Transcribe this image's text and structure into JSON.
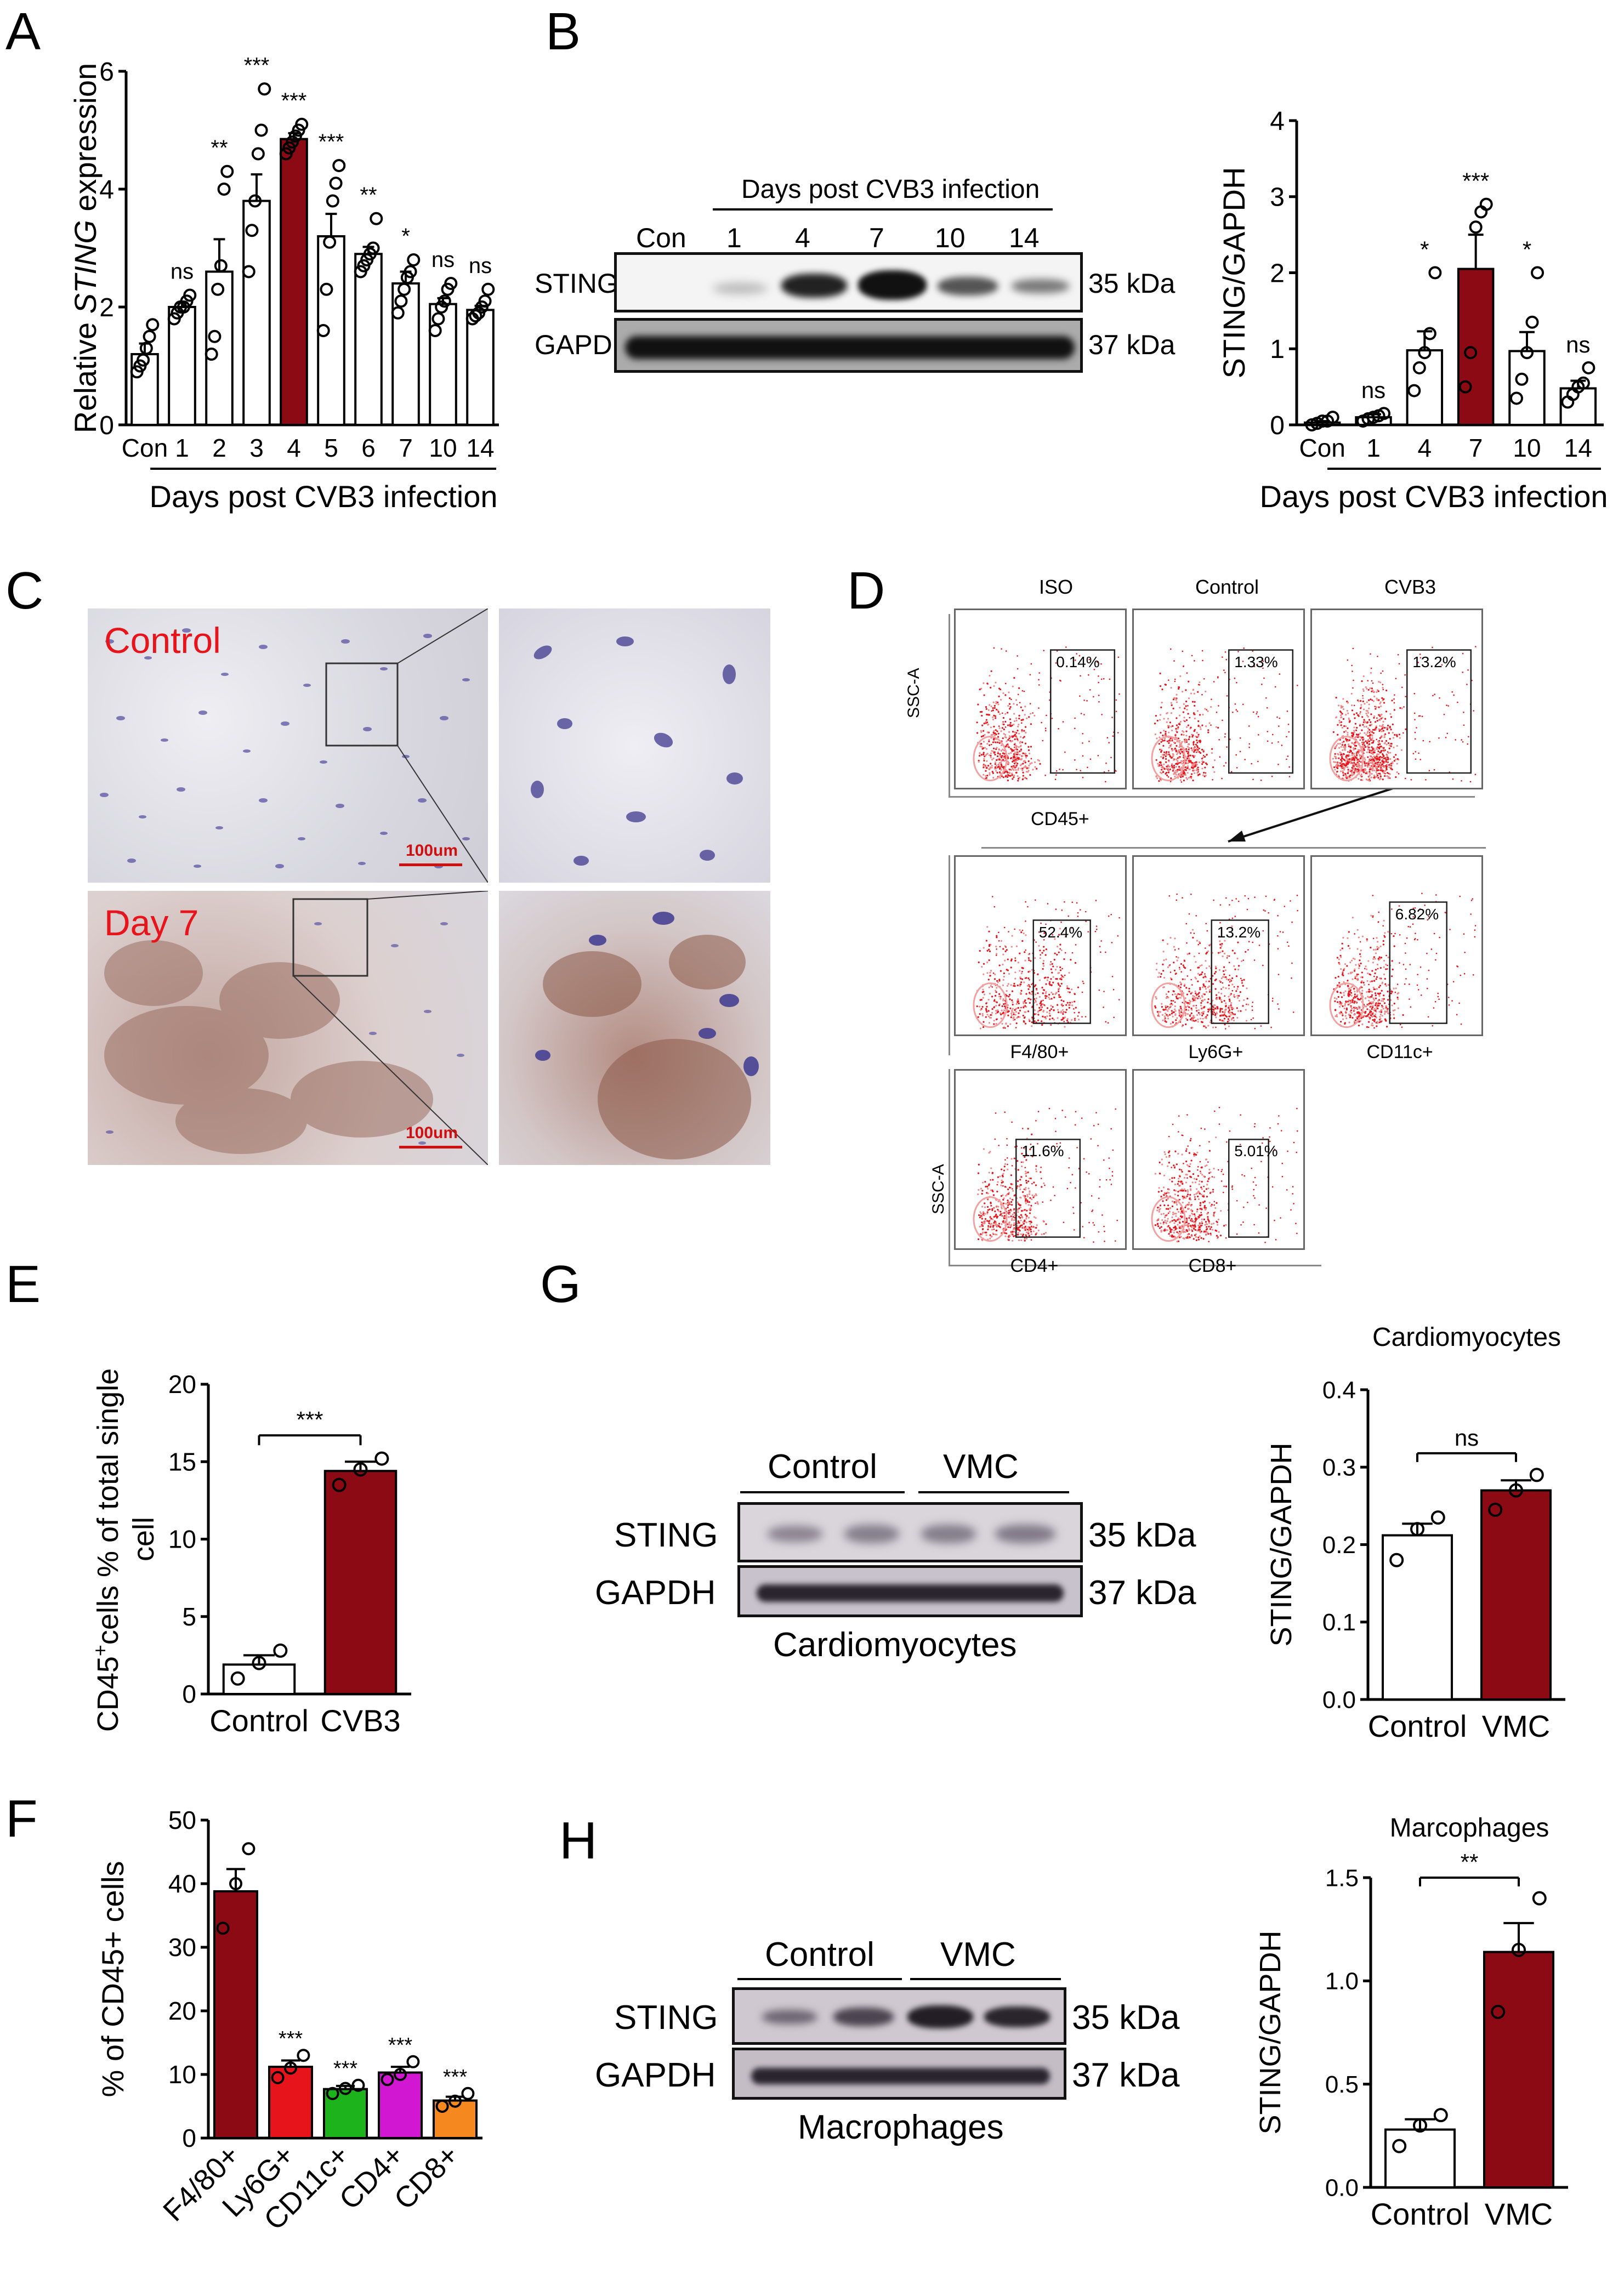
{
  "panels": {
    "A": "A",
    "B": "B",
    "C": "C",
    "D": "D",
    "E": "E",
    "F": "F",
    "G": "G",
    "H": "H"
  },
  "colors": {
    "dark_red": "#8b0a14",
    "red": "#e8141b",
    "green": "#1db31d",
    "magenta": "#d217d2",
    "orange": "#f5891f",
    "white_bar": "#ffffff"
  },
  "panel_A": {
    "ylabel_pre": "Relative ",
    "ylabel_italic": "STING",
    "ylabel_post": " expression",
    "xlabel": "Days post CVB3 infection"
  },
  "panel_B": {
    "blot_header": "Days post CVB3 infection",
    "lanes": [
      "Con",
      "1",
      "4",
      "7",
      "10",
      "14"
    ],
    "rows": [
      "STING",
      "GAPDH"
    ],
    "sizes": [
      "35 kDa",
      "37 kDa"
    ]
  },
  "panel_C": {
    "top_label": "Control",
    "bottom_label": "Day 7",
    "scale_top": "100um",
    "scale_bottom": "100um"
  },
  "panel_D": {
    "titles": [
      "ISO",
      "Control",
      "CVB3"
    ],
    "row1_pcts": [
      "0.14%",
      "1.33%",
      "13.2%"
    ],
    "row1_xlabel": "CD45+",
    "row2_pcts": [
      "52.4%",
      "13.2%",
      "6.82%"
    ],
    "row2_xlabels": [
      "F4/80+",
      "Ly6G+",
      "CD11c+"
    ],
    "row3_pcts": [
      "11.6%",
      "5.01%"
    ],
    "row3_xlabels": [
      "CD4+",
      "CD8+"
    ],
    "ylabel": "SSC-A"
  },
  "panel_G": {
    "group_labels": [
      "Control",
      "VMC"
    ],
    "rows": [
      "STING",
      "GAPDH"
    ],
    "sizes": [
      "35 kDa",
      "37 kDa"
    ],
    "caption": "Cardiomyocytes"
  },
  "panel_H": {
    "group_labels": [
      "Control",
      "VMC"
    ],
    "rows": [
      "STING",
      "GAPDH"
    ],
    "sizes": [
      "35 kDa",
      "37 kDa"
    ],
    "caption": "Macrophages"
  },
  "chart_data": [
    {
      "id": "A",
      "type": "bar",
      "categories": [
        "Con",
        "1",
        "2",
        "3",
        "4",
        "5",
        "6",
        "7",
        "10",
        "14"
      ],
      "values": [
        1.2,
        2.0,
        2.6,
        3.8,
        4.85,
        3.2,
        2.9,
        2.4,
        2.05,
        1.95
      ],
      "errors": [
        0.18,
        0.07,
        0.55,
        0.45,
        0.1,
        0.38,
        0.12,
        0.2,
        0.1,
        0.07
      ],
      "points": [
        [
          0.9,
          1.0,
          1.1,
          1.3,
          1.5,
          1.7
        ],
        [
          1.8,
          1.9,
          2.0,
          2.0,
          2.1,
          2.2
        ],
        [
          1.2,
          1.5,
          2.3,
          2.7,
          4.0,
          4.3
        ],
        [
          2.6,
          3.3,
          3.8,
          4.6,
          5.0,
          5.7
        ],
        [
          4.6,
          4.7,
          4.8,
          4.9,
          5.0,
          5.1
        ],
        [
          1.6,
          2.3,
          3.1,
          3.8,
          4.1,
          4.4
        ],
        [
          2.6,
          2.7,
          2.8,
          2.9,
          3.0,
          3.5
        ],
        [
          1.9,
          2.1,
          2.3,
          2.5,
          2.6,
          2.8
        ],
        [
          1.6,
          1.8,
          2.0,
          2.1,
          2.3,
          2.4
        ],
        [
          1.8,
          1.85,
          1.9,
          2.0,
          2.1,
          2.3
        ]
      ],
      "significance": [
        "",
        "ns",
        "**",
        "***",
        "***",
        "***",
        "**",
        "*",
        "ns",
        "ns"
      ],
      "highlight_index": 4,
      "ylim": [
        0,
        6
      ],
      "yticks": [
        "0",
        "2",
        "4",
        "6"
      ]
    },
    {
      "id": "B",
      "type": "bar",
      "categories": [
        "Con",
        "1",
        "4",
        "7",
        "10",
        "14"
      ],
      "values": [
        0.03,
        0.1,
        0.98,
        2.05,
        0.97,
        0.48
      ],
      "errors": [
        0.02,
        0.04,
        0.25,
        0.45,
        0.25,
        0.1
      ],
      "points": [
        [
          0.0,
          0.02,
          0.05,
          0.05,
          0.1
        ],
        [
          0.05,
          0.08,
          0.1,
          0.12,
          0.15
        ],
        [
          0.45,
          0.75,
          0.95,
          1.2,
          2.0
        ],
        [
          0.5,
          0.95,
          2.6,
          2.8,
          2.9
        ],
        [
          0.35,
          0.6,
          0.95,
          1.35,
          2.0
        ],
        [
          0.3,
          0.4,
          0.5,
          0.55,
          0.75
        ]
      ],
      "significance": [
        "",
        "ns",
        "*",
        "***",
        "*",
        "ns"
      ],
      "highlight_index": 3,
      "ylabel": "STING/GAPDH",
      "xlabel": "Days post CVB3 infection",
      "ylim": [
        0,
        4
      ],
      "yticks": [
        "0",
        "1",
        "2",
        "3",
        "4"
      ]
    },
    {
      "id": "E",
      "type": "bar",
      "categories": [
        "Control",
        "CVB3"
      ],
      "values": [
        1.9,
        14.4
      ],
      "errors": [
        0.6,
        0.6
      ],
      "points": [
        [
          1.0,
          2.0,
          2.8
        ],
        [
          13.5,
          14.5,
          15.2
        ]
      ],
      "significance": "***",
      "ylabel_pre": "CD45",
      "ylabel_sup": "+",
      "ylabel_post": "cells % of total single",
      "ylabel_line2": "cell",
      "ylim": [
        0,
        20
      ],
      "yticks": [
        "0",
        "5",
        "10",
        "15",
        "20"
      ]
    },
    {
      "id": "F",
      "type": "bar",
      "categories": [
        "F4/80+",
        "Ly6G+",
        "CD11c+",
        "CD4+",
        "CD8+"
      ],
      "values": [
        38.8,
        11.2,
        7.7,
        10.3,
        5.9
      ],
      "errors": [
        3.5,
        1.0,
        0.5,
        0.9,
        0.6
      ],
      "points": [
        [
          33.0,
          40.0,
          45.5
        ],
        [
          9.5,
          11.0,
          13.0
        ],
        [
          7.0,
          7.8,
          8.3
        ],
        [
          9.2,
          10.0,
          12.0
        ],
        [
          5.0,
          5.8,
          7.0
        ]
      ],
      "significance": [
        "",
        "***",
        "***",
        "***",
        "***"
      ],
      "ylabel": "% of CD45+ cells",
      "ylim": [
        0,
        50
      ],
      "yticks": [
        "0",
        "10",
        "20",
        "30",
        "40",
        "50"
      ]
    },
    {
      "id": "G",
      "type": "bar",
      "title": "Cardiomyocytes",
      "categories": [
        "Control",
        "VMC"
      ],
      "values": [
        0.212,
        0.27
      ],
      "errors": [
        0.015,
        0.013
      ],
      "points": [
        [
          0.18,
          0.22,
          0.235
        ],
        [
          0.245,
          0.27,
          0.29
        ]
      ],
      "significance": "ns",
      "ylabel": "STING/GAPDH",
      "ylim": [
        0,
        0.4
      ],
      "yticks": [
        "0.0",
        "0.1",
        "0.2",
        "0.3",
        "0.4"
      ]
    },
    {
      "id": "H",
      "type": "bar",
      "title": "Marcophages",
      "categories": [
        "Control",
        "VMC"
      ],
      "values": [
        0.28,
        1.14
      ],
      "errors": [
        0.05,
        0.14
      ],
      "points": [
        [
          0.2,
          0.3,
          0.35
        ],
        [
          0.85,
          1.15,
          1.4
        ]
      ],
      "significance": "**",
      "ylabel": "STING/GAPDH",
      "ylim": [
        0,
        1.5
      ],
      "yticks": [
        "0.0",
        "0.5",
        "1.0",
        "1.5"
      ]
    }
  ]
}
